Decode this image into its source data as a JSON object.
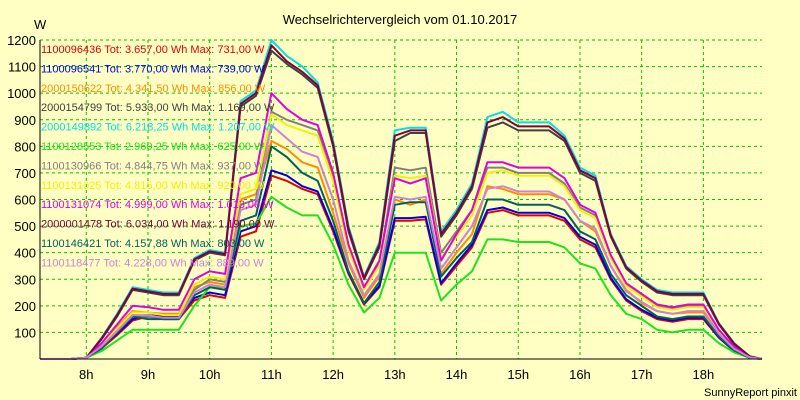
{
  "chart_data": {
    "type": "line",
    "title": "Wechselrichtervergleich vom 01.10.2017",
    "ylabel": "W",
    "credit": "SunnyReport pinxit",
    "ylim": [
      0,
      1200
    ],
    "xlim": [
      7.25,
      18.95
    ],
    "yticks": [
      100,
      200,
      300,
      400,
      500,
      600,
      700,
      800,
      900,
      1000,
      1100,
      1200
    ],
    "xticks": [
      {
        "label": "8h",
        "x": 8
      },
      {
        "label": "9h",
        "x": 9
      },
      {
        "label": "10h",
        "x": 10
      },
      {
        "label": "11h",
        "x": 11
      },
      {
        "label": "12h",
        "x": 12
      },
      {
        "label": "13h",
        "x": 13
      },
      {
        "label": "14h",
        "x": 14
      },
      {
        "label": "15h",
        "x": 15
      },
      {
        "label": "16h",
        "x": 16
      },
      {
        "label": "17h",
        "x": 17
      },
      {
        "label": "18h",
        "x": 18
      }
    ],
    "grid": true,
    "legend_position": "top-left",
    "x": [
      7.25,
      7.5,
      7.75,
      8.0,
      8.25,
      8.5,
      8.75,
      9.0,
      9.25,
      9.5,
      9.75,
      10.0,
      10.25,
      10.5,
      10.75,
      11.0,
      11.25,
      11.5,
      11.75,
      12.0,
      12.25,
      12.5,
      12.75,
      13.0,
      13.25,
      13.5,
      13.75,
      14.0,
      14.25,
      14.5,
      14.75,
      15.0,
      15.25,
      15.5,
      15.75,
      16.0,
      16.25,
      16.5,
      16.75,
      17.0,
      17.25,
      17.5,
      17.75,
      18.0,
      18.25,
      18.5,
      18.75,
      18.95
    ],
    "series": [
      {
        "name": "1100096436 Tot: 3.657,00 Wh Max: 731,00 W",
        "color": "#e00000",
        "values": [
          0,
          0,
          0,
          5,
          40,
          90,
          145,
          160,
          150,
          150,
          220,
          240,
          230,
          460,
          480,
          690,
          670,
          640,
          620,
          480,
          320,
          205,
          270,
          520,
          520,
          525,
          280,
          350,
          420,
          550,
          560,
          540,
          540,
          540,
          520,
          450,
          420,
          300,
          220,
          180,
          150,
          140,
          150,
          150,
          80,
          30,
          5,
          0
        ]
      },
      {
        "name": "1100096541 Tot: 3.770,00 Wh Max: 739,00 W",
        "color": "#0000e0",
        "values": [
          0,
          0,
          0,
          5,
          45,
          95,
          150,
          165,
          160,
          160,
          230,
          250,
          240,
          480,
          500,
          710,
          690,
          650,
          630,
          490,
          325,
          210,
          275,
          530,
          530,
          535,
          285,
          360,
          430,
          560,
          570,
          550,
          550,
          550,
          530,
          460,
          430,
          305,
          225,
          185,
          155,
          145,
          155,
          155,
          82,
          30,
          5,
          0
        ]
      },
      {
        "name": "2000150622 Tot: 4.341,50 Wh Max: 856,00 W",
        "color": "#ff8c00",
        "values": [
          0,
          0,
          0,
          5,
          55,
          120,
          180,
          175,
          170,
          170,
          270,
          290,
          280,
          600,
          620,
          820,
          790,
          740,
          720,
          550,
          360,
          230,
          310,
          600,
          580,
          600,
          320,
          400,
          470,
          650,
          640,
          620,
          620,
          620,
          600,
          520,
          480,
          350,
          260,
          210,
          180,
          170,
          175,
          175,
          95,
          35,
          5,
          0
        ]
      },
      {
        "name": "2000154799 Tot: 5.933,00 Wh Max: 1.169,00 W",
        "color": "#404040",
        "values": [
          0,
          0,
          0,
          5,
          75,
          160,
          260,
          250,
          240,
          240,
          370,
          400,
          390,
          950,
          990,
          1160,
          1110,
          1070,
          1020,
          800,
          480,
          300,
          420,
          820,
          850,
          850,
          460,
          540,
          640,
          870,
          890,
          860,
          860,
          860,
          820,
          700,
          670,
          460,
          340,
          290,
          250,
          240,
          240,
          240,
          130,
          55,
          10,
          0
        ]
      },
      {
        "name": "2000149892 Tot: 6.218,25 Wh Max: 1.207,00 W",
        "color": "#00e0e0",
        "values": [
          0,
          0,
          0,
          5,
          80,
          170,
          270,
          260,
          250,
          250,
          380,
          410,
          400,
          970,
          1010,
          1200,
          1140,
          1100,
          1040,
          820,
          500,
          310,
          440,
          860,
          870,
          870,
          480,
          560,
          660,
          910,
          930,
          890,
          890,
          890,
          840,
          720,
          690,
          470,
          350,
          300,
          260,
          250,
          250,
          250,
          135,
          60,
          10,
          0
        ]
      },
      {
        "name": "1100128553 Tot: 2.960,25 Wh Max: 625,00 W",
        "color": "#20e020",
        "values": [
          0,
          0,
          0,
          5,
          30,
          70,
          110,
          110,
          110,
          110,
          200,
          270,
          270,
          500,
          510,
          610,
          570,
          540,
          540,
          430,
          280,
          175,
          230,
          400,
          400,
          400,
          220,
          280,
          330,
          450,
          450,
          440,
          440,
          440,
          420,
          360,
          340,
          240,
          170,
          150,
          110,
          100,
          110,
          110,
          60,
          25,
          5,
          0
        ]
      },
      {
        "name": "1100130966 Tot: 4.844,75 Wh Max: 937,00 W",
        "color": "#808080",
        "values": [
          0,
          0,
          0,
          5,
          50,
          100,
          160,
          160,
          150,
          150,
          260,
          300,
          290,
          580,
          600,
          930,
          900,
          880,
          860,
          690,
          420,
          270,
          360,
          720,
          710,
          720,
          400,
          480,
          560,
          720,
          720,
          700,
          700,
          700,
          660,
          570,
          540,
          390,
          280,
          240,
          200,
          190,
          200,
          200,
          110,
          45,
          8,
          0
        ]
      },
      {
        "name": "1100131025 Tot: 4.815,00 Wh Max: 920,00 W",
        "color": "#f0f000",
        "values": [
          0,
          0,
          0,
          5,
          55,
          115,
          175,
          175,
          165,
          165,
          280,
          310,
          300,
          620,
          640,
          920,
          880,
          860,
          840,
          670,
          410,
          260,
          350,
          690,
          680,
          690,
          380,
          460,
          540,
          700,
          710,
          690,
          690,
          690,
          650,
          560,
          530,
          380,
          275,
          235,
          195,
          185,
          195,
          195,
          105,
          42,
          8,
          0
        ]
      },
      {
        "name": "1100131074 Tot: 4.999,00 Wh Max: 1.013,00 W",
        "color": "#e000e0",
        "values": [
          0,
          0,
          0,
          5,
          60,
          130,
          200,
          195,
          185,
          185,
          300,
          330,
          320,
          680,
          700,
          1000,
          940,
          900,
          880,
          700,
          430,
          270,
          370,
          680,
          660,
          680,
          370,
          470,
          560,
          740,
          740,
          720,
          720,
          720,
          680,
          580,
          550,
          390,
          285,
          245,
          205,
          195,
          205,
          205,
          110,
          45,
          8,
          0
        ]
      },
      {
        "name": "2000001478 Tot: 6.034,00 Wh Max: 1.190,00 W",
        "color": "#800040",
        "values": [
          0,
          0,
          0,
          5,
          78,
          165,
          265,
          255,
          245,
          245,
          375,
          405,
          395,
          960,
          1000,
          1180,
          1120,
          1080,
          1030,
          810,
          490,
          305,
          430,
          840,
          860,
          860,
          470,
          550,
          650,
          890,
          910,
          875,
          875,
          875,
          830,
          710,
          680,
          465,
          345,
          295,
          255,
          245,
          245,
          245,
          133,
          58,
          10,
          0
        ]
      },
      {
        "name": "1100146421 Tot: 4.157,88 Wh Max: 803,00 W",
        "color": "#006060",
        "values": [
          0,
          0,
          0,
          5,
          40,
          100,
          160,
          150,
          150,
          150,
          240,
          270,
          260,
          520,
          540,
          800,
          760,
          700,
          670,
          520,
          330,
          210,
          290,
          580,
          590,
          590,
          310,
          380,
          440,
          600,
          600,
          580,
          580,
          580,
          560,
          480,
          450,
          320,
          240,
          200,
          160,
          150,
          160,
          160,
          85,
          32,
          5,
          0
        ]
      },
      {
        "name": "1100118477 Tot: 4.228,00 Wh Max: 889,00 W",
        "color": "#d080d0",
        "values": [
          0,
          0,
          0,
          5,
          48,
          105,
          165,
          165,
          155,
          155,
          250,
          280,
          270,
          560,
          580,
          880,
          830,
          780,
          760,
          600,
          370,
          240,
          320,
          610,
          600,
          610,
          340,
          420,
          500,
          640,
          650,
          630,
          630,
          630,
          600,
          520,
          490,
          350,
          255,
          215,
          180,
          170,
          180,
          180,
          95,
          38,
          6,
          0
        ]
      }
    ]
  }
}
